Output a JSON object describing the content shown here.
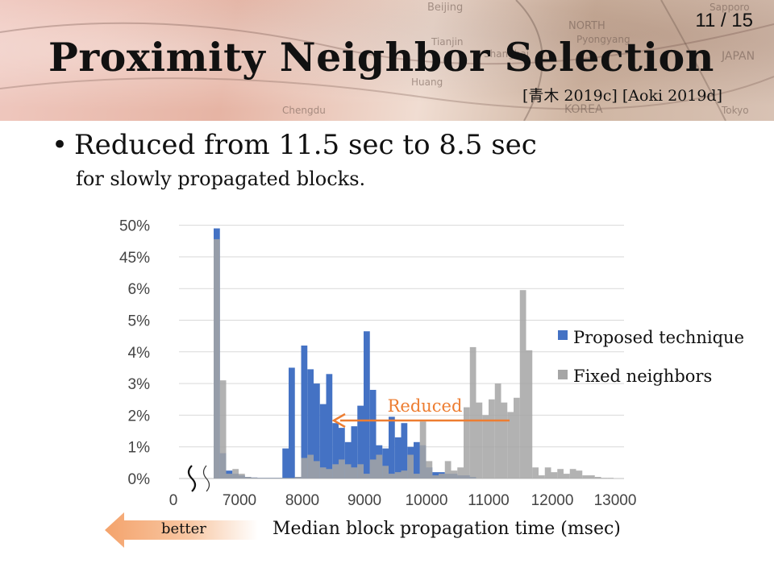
{
  "page_number": "11 / 15",
  "title": "Proximity Neighbor Selection",
  "citation": "[青木 2019c] [Aoki 2019d]",
  "bullet": {
    "main": "Reduced from 11.5 sec to 8.5 sec",
    "sub": "for slowly propagated blocks."
  },
  "background_map_labels": [
    "Beijing",
    "NORTH",
    "Pyongyang",
    "Tianjin",
    "JAPAN",
    "KOREA",
    "Tokyo",
    "Chengdu",
    "Sapporo",
    "Huang",
    "Shanghai"
  ],
  "better_label": "better",
  "annotation_label": "Reduced",
  "colors": {
    "proposed": "#4472c4",
    "fixed": "#a5a5a5",
    "annotation": "#ed7d31",
    "better_arrow": "#f4b183"
  },
  "chart_data": {
    "type": "bar",
    "xlabel": "Median block propagation  time (msec)",
    "x_tick_labels": [
      "0",
      "7000",
      "8000",
      "9000",
      "10000",
      "11000",
      "12000",
      "13000"
    ],
    "y_tick_labels": [
      "0%",
      "1%",
      "2%",
      "3%",
      "4%",
      "5%",
      "6%",
      "45%",
      "50%"
    ],
    "y_axis_note": "broken axis: bands above 6% show 45% and 50%",
    "x_axis_note": "broken axis between 0 and 6700",
    "x_range": [
      6700,
      13000
    ],
    "bin_width_msec": 100,
    "legend_position": "right",
    "grid": true,
    "series": [
      {
        "name": "Proposed  technique",
        "x": [
          6700,
          6800,
          6900,
          7000,
          7100,
          7200,
          7300,
          7400,
          7500,
          7600,
          7700,
          7800,
          7900,
          8000,
          8100,
          8200,
          8300,
          8400,
          8500,
          8600,
          8700,
          8800,
          8900,
          9000,
          9100,
          9200,
          9300,
          9400,
          9500,
          9600,
          9700,
          9800,
          9900,
          10000,
          10100,
          10200,
          10300,
          10400,
          10500,
          10600,
          10700,
          10800
        ],
        "values": [
          49.5,
          0.8,
          0.25,
          0.15,
          0.1,
          0.05,
          0.03,
          0.02,
          0.02,
          0.02,
          0.02,
          0.95,
          3.5,
          0.05,
          4.2,
          3.45,
          3.0,
          2.35,
          3.3,
          1.75,
          1.6,
          1.15,
          1.65,
          2.3,
          4.65,
          2.8,
          1.05,
          0.95,
          1.95,
          1.3,
          1.75,
          1.0,
          1.15,
          1.05,
          0.35,
          0.2,
          0.2,
          0.15,
          0.15,
          0.1,
          0.1,
          0.05
        ]
      },
      {
        "name": "Fixed neighbors",
        "x": [
          6700,
          6800,
          6900,
          7000,
          7100,
          7200,
          7300,
          7400,
          7500,
          7600,
          7700,
          7800,
          7900,
          8000,
          8100,
          8200,
          8300,
          8400,
          8500,
          8600,
          8700,
          8800,
          8900,
          9000,
          9100,
          9200,
          9300,
          9400,
          9500,
          9600,
          9700,
          9800,
          9900,
          10000,
          10100,
          10200,
          10300,
          10400,
          10500,
          10600,
          10700,
          10800,
          10900,
          11000,
          11100,
          11200,
          11300,
          11400,
          11500,
          11600,
          11700,
          11800,
          11900,
          12000,
          12100,
          12200,
          12300,
          12400,
          12500,
          12600,
          12700,
          12800,
          12900,
          13000
        ],
        "values": [
          47.8,
          3.1,
          0.15,
          0.3,
          0.15,
          0.05,
          0.03,
          0.02,
          0.02,
          0.02,
          0.02,
          0.02,
          0.02,
          0.05,
          0.65,
          0.75,
          0.55,
          0.35,
          0.3,
          0.45,
          0.6,
          0.45,
          0.35,
          0.45,
          0.15,
          0.6,
          0.75,
          0.4,
          0.15,
          0.2,
          0.25,
          0.75,
          0.15,
          1.8,
          0.55,
          0.1,
          0.15,
          0.55,
          0.25,
          0.35,
          2.25,
          4.15,
          2.4,
          2.0,
          2.5,
          3.0,
          2.4,
          2.1,
          2.55,
          5.95,
          4.05,
          0.35,
          0.1,
          0.35,
          0.2,
          0.3,
          0.15,
          0.3,
          0.25,
          0.1,
          0.1,
          0.05,
          0.02,
          0.02
        ]
      }
    ]
  }
}
